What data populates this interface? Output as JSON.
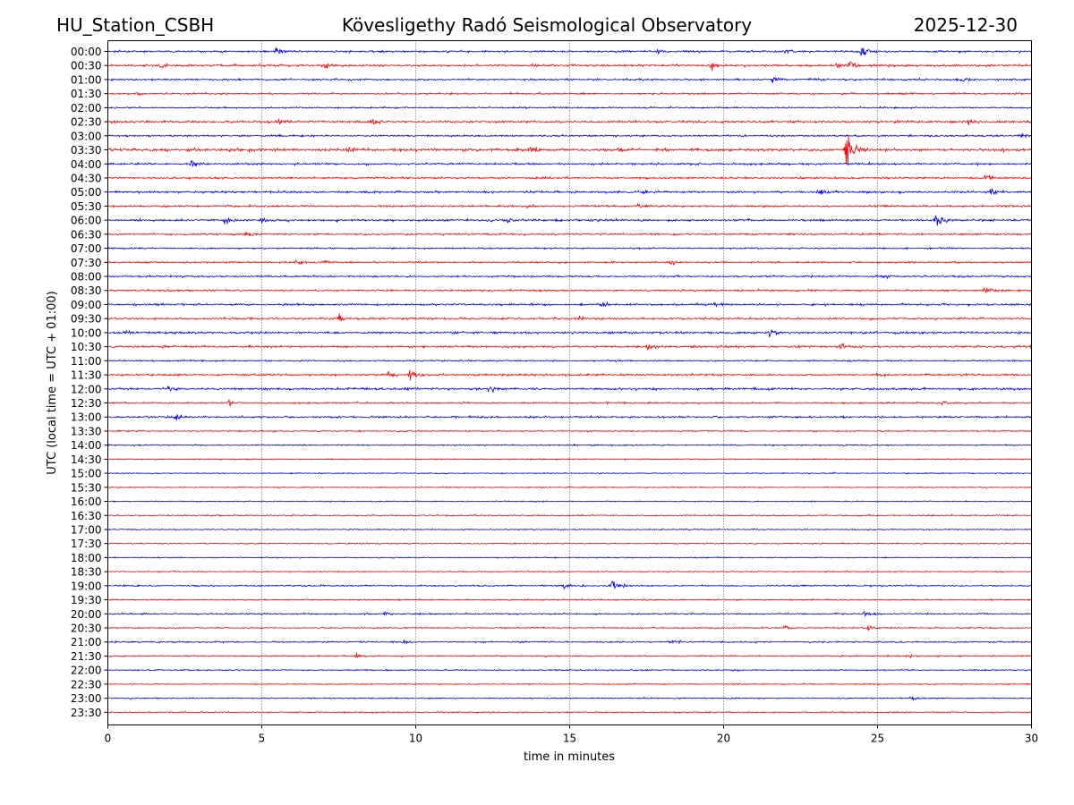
{
  "header": {
    "station": "HU_Station_CSBH",
    "observatory": "Kövesligethy Radó Seismological Observatory",
    "date": "2025-12-30"
  },
  "chart_data": {
    "type": "line",
    "title": "Kövesligethy Radó Seismological Observatory",
    "xlabel": "time in minutes",
    "ylabel": "UTC (local time = UTC + 01:00)",
    "xlim": [
      0,
      30
    ],
    "x_ticks": [
      "0",
      "5",
      "10",
      "15",
      "20",
      "25",
      "30"
    ],
    "grid": "vertical dotted at every 5 minutes",
    "trace_colors": [
      "#0000ff",
      "#ff0000"
    ],
    "rows": [
      "00:00",
      "00:30",
      "01:00",
      "01:30",
      "02:00",
      "02:30",
      "03:00",
      "03:30",
      "04:00",
      "04:30",
      "05:00",
      "05:30",
      "06:00",
      "06:30",
      "07:00",
      "07:30",
      "08:00",
      "08:30",
      "09:00",
      "09:30",
      "10:00",
      "10:30",
      "11:00",
      "11:30",
      "12:00",
      "12:30",
      "13:00",
      "13:30",
      "14:00",
      "14:30",
      "15:00",
      "15:30",
      "16:00",
      "16:30",
      "17:00",
      "17:30",
      "18:00",
      "18:30",
      "19:00",
      "19:30",
      "20:00",
      "20:30",
      "21:00",
      "21:30",
      "22:00",
      "22:30",
      "23:00",
      "23:30"
    ],
    "row_noise": [
      0.9,
      1.0,
      0.9,
      0.8,
      0.7,
      1.0,
      0.8,
      1.3,
      0.9,
      0.9,
      1.0,
      0.9,
      1.0,
      0.8,
      0.7,
      0.8,
      0.8,
      0.8,
      0.9,
      0.9,
      1.0,
      0.9,
      0.7,
      0.9,
      1.0,
      0.7,
      0.9,
      0.6,
      0.6,
      0.5,
      0.5,
      0.5,
      0.5,
      0.6,
      0.5,
      0.5,
      0.5,
      0.5,
      0.7,
      0.6,
      0.7,
      0.6,
      0.7,
      0.6,
      0.6,
      0.5,
      0.6,
      0.6
    ],
    "events": [
      {
        "row": "00:00",
        "t": 5.5,
        "amp": 4.5
      },
      {
        "row": "00:00",
        "t": 17.9,
        "amp": 3.5
      },
      {
        "row": "00:00",
        "t": 24.5,
        "amp": 5.0
      },
      {
        "row": "00:00",
        "t": 22.0,
        "amp": 2.5
      },
      {
        "row": "00:30",
        "t": 1.7,
        "amp": 3.0
      },
      {
        "row": "00:30",
        "t": 7.1,
        "amp": 5.0
      },
      {
        "row": "00:30",
        "t": 19.6,
        "amp": 4.0
      },
      {
        "row": "00:30",
        "t": 23.7,
        "amp": 5.0
      },
      {
        "row": "00:30",
        "t": 24.1,
        "amp": 4.0
      },
      {
        "row": "01:00",
        "t": 21.6,
        "amp": 3.5
      },
      {
        "row": "01:00",
        "t": 27.7,
        "amp": 2.5
      },
      {
        "row": "01:30",
        "t": 0.9,
        "amp": 3.0
      },
      {
        "row": "02:30",
        "t": 5.5,
        "amp": 3.5
      },
      {
        "row": "02:30",
        "t": 8.6,
        "amp": 3.0
      },
      {
        "row": "02:30",
        "t": 28.0,
        "amp": 3.5
      },
      {
        "row": "03:00",
        "t": 29.6,
        "amp": 3.0
      },
      {
        "row": "03:30",
        "t": 2.8,
        "amp": 3.0
      },
      {
        "row": "03:30",
        "t": 7.8,
        "amp": 4.0
      },
      {
        "row": "03:30",
        "t": 13.7,
        "amp": 4.0
      },
      {
        "row": "03:30",
        "t": 16.6,
        "amp": 5.0
      },
      {
        "row": "03:30",
        "t": 24.0,
        "amp": 28.0
      },
      {
        "row": "04:00",
        "t": 2.7,
        "amp": 3.0
      },
      {
        "row": "04:30",
        "t": 28.5,
        "amp": 3.0
      },
      {
        "row": "05:00",
        "t": 17.4,
        "amp": 2.5
      },
      {
        "row": "05:00",
        "t": 23.1,
        "amp": 4.0
      },
      {
        "row": "05:00",
        "t": 28.7,
        "amp": 3.5
      },
      {
        "row": "05:30",
        "t": 13.6,
        "amp": 3.0
      },
      {
        "row": "05:30",
        "t": 17.2,
        "amp": 3.5
      },
      {
        "row": "06:00",
        "t": 3.8,
        "amp": 5.0
      },
      {
        "row": "06:00",
        "t": 5.0,
        "amp": 2.5
      },
      {
        "row": "06:00",
        "t": 13.0,
        "amp": 2.5
      },
      {
        "row": "06:00",
        "t": 26.9,
        "amp": 8.0
      },
      {
        "row": "06:30",
        "t": 4.5,
        "amp": 5.5
      },
      {
        "row": "07:30",
        "t": 6.1,
        "amp": 3.0
      },
      {
        "row": "07:30",
        "t": 7.0,
        "amp": 2.5
      },
      {
        "row": "07:30",
        "t": 18.3,
        "amp": 2.5
      },
      {
        "row": "08:00",
        "t": 25.2,
        "amp": 3.5
      },
      {
        "row": "08:30",
        "t": 28.5,
        "amp": 4.5
      },
      {
        "row": "09:00",
        "t": 16.0,
        "amp": 3.0
      },
      {
        "row": "09:00",
        "t": 19.7,
        "amp": 2.5
      },
      {
        "row": "09:30",
        "t": 7.5,
        "amp": 4.5
      },
      {
        "row": "09:30",
        "t": 15.3,
        "amp": 3.0
      },
      {
        "row": "10:00",
        "t": 0.5,
        "amp": 2.5
      },
      {
        "row": "10:00",
        "t": 21.5,
        "amp": 3.0
      },
      {
        "row": "10:30",
        "t": 17.5,
        "amp": 3.5
      },
      {
        "row": "10:30",
        "t": 23.8,
        "amp": 4.5
      },
      {
        "row": "11:30",
        "t": 9.1,
        "amp": 3.0
      },
      {
        "row": "11:30",
        "t": 9.8,
        "amp": 6.5
      },
      {
        "row": "11:30",
        "t": 25.0,
        "amp": 3.0
      },
      {
        "row": "12:00",
        "t": 2.0,
        "amp": 3.0
      },
      {
        "row": "12:00",
        "t": 12.4,
        "amp": 4.0
      },
      {
        "row": "12:00",
        "t": 9.7,
        "amp": 2.5
      },
      {
        "row": "12:30",
        "t": 3.9,
        "amp": 4.5
      },
      {
        "row": "12:30",
        "t": 27.1,
        "amp": 3.0
      },
      {
        "row": "13:00",
        "t": 2.2,
        "amp": 4.5
      },
      {
        "row": "19:00",
        "t": 16.4,
        "amp": 7.0
      },
      {
        "row": "19:00",
        "t": 14.8,
        "amp": 2.5
      },
      {
        "row": "20:00",
        "t": 9.0,
        "amp": 3.0
      },
      {
        "row": "20:00",
        "t": 24.6,
        "amp": 3.5
      },
      {
        "row": "20:30",
        "t": 24.7,
        "amp": 3.0
      },
      {
        "row": "20:30",
        "t": 22.0,
        "amp": 2.5
      },
      {
        "row": "21:00",
        "t": 9.6,
        "amp": 3.5
      },
      {
        "row": "21:00",
        "t": 18.3,
        "amp": 2.5
      },
      {
        "row": "21:30",
        "t": 8.1,
        "amp": 3.5
      },
      {
        "row": "21:30",
        "t": 26.0,
        "amp": 2.5
      },
      {
        "row": "22:00",
        "t": 20.4,
        "amp": 2.5
      },
      {
        "row": "23:00",
        "t": 26.1,
        "amp": 3.5
      }
    ]
  }
}
